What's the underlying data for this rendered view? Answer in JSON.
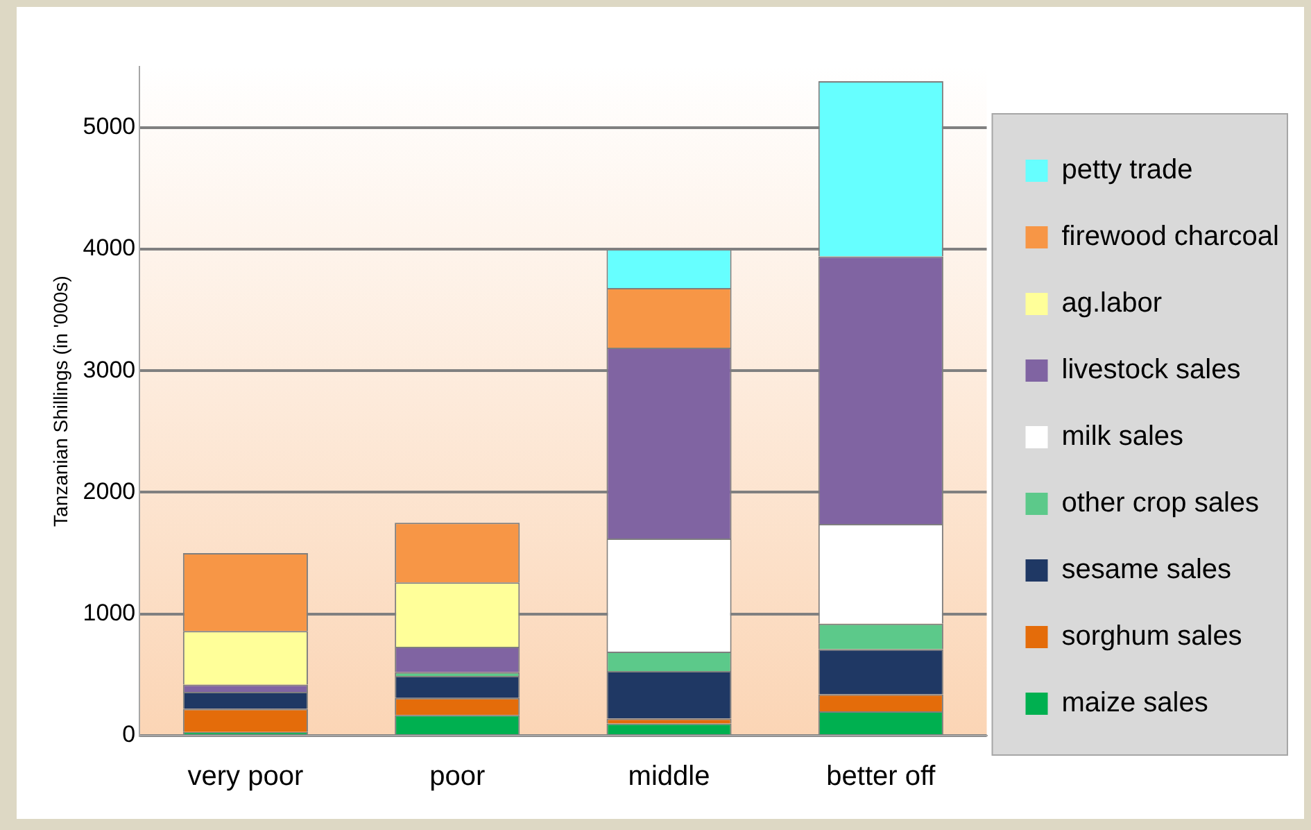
{
  "chart_data": {
    "type": "bar",
    "stacked": true,
    "ylabel": "Tanzanian Shillings (in '000s)",
    "categories": [
      "very poor",
      "poor",
      "middle",
      "better off"
    ],
    "series": [
      {
        "name": "maize sales",
        "color": "#00b050",
        "values": [
          30,
          170,
          100,
          200
        ]
      },
      {
        "name": "sorghum sales",
        "color": "#e46c0a",
        "values": [
          190,
          140,
          40,
          140
        ]
      },
      {
        "name": "sesame sales",
        "color": "#1f3864",
        "values": [
          140,
          180,
          390,
          370
        ]
      },
      {
        "name": "other crop sales",
        "color": "#5cc98a",
        "values": [
          0,
          30,
          160,
          210
        ]
      },
      {
        "name": "milk sales",
        "color": "#ffffff",
        "values": [
          0,
          0,
          930,
          820
        ]
      },
      {
        "name": "livestock sales",
        "color": "#8064a2",
        "values": [
          60,
          210,
          1570,
          2200
        ]
      },
      {
        "name": "ag.labor",
        "color": "#ffff99",
        "values": [
          440,
          530,
          0,
          0
        ]
      },
      {
        "name": "firewood charcoal",
        "color": "#f79646",
        "values": [
          640,
          490,
          490,
          0
        ]
      },
      {
        "name": "petty trade",
        "color": "#66ffff",
        "values": [
          0,
          0,
          320,
          1440
        ]
      }
    ],
    "ylim": [
      0,
      5500
    ],
    "yticks": [
      0,
      1000,
      2000,
      3000,
      4000,
      5000
    ],
    "grid": "y",
    "legend": "right"
  }
}
